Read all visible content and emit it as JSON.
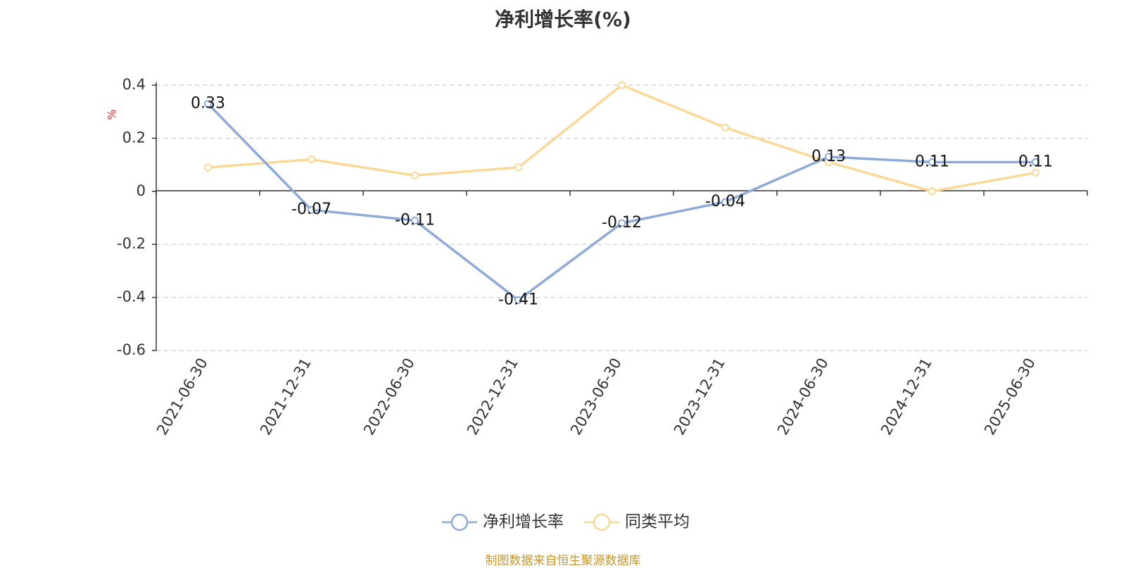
{
  "chart_data": {
    "type": "line",
    "title": "净利增长率(%)",
    "ylabel": "%",
    "categories": [
      "2021-06-30",
      "2021-12-31",
      "2022-06-30",
      "2022-12-31",
      "2023-06-30",
      "2023-12-31",
      "2024-06-30",
      "2024-12-31",
      "2025-06-30"
    ],
    "ylim": [
      -0.6,
      0.4
    ],
    "yticks": [
      0.4,
      0.2,
      0,
      -0.2,
      -0.4,
      -0.6
    ],
    "ytick_labels": [
      "0.4",
      "0.2",
      "0",
      "-0.2",
      "-0.4",
      "-0.6"
    ],
    "grid": true,
    "legend_position": "bottom-center",
    "series": [
      {
        "name": "净利增长率",
        "color": "#8eaad8",
        "values": [
          0.33,
          -0.07,
          -0.11,
          -0.41,
          -0.12,
          -0.04,
          0.13,
          0.11,
          0.11
        ],
        "labels": [
          "0.33",
          "-0.07",
          "-0.11",
          "-0.41",
          "-0.12",
          "-0.04",
          "0.13",
          "0.11",
          "0.11"
        ]
      },
      {
        "name": "同类平均",
        "color": "#fad996",
        "values": [
          0.09,
          0.12,
          0.06,
          0.09,
          0.4,
          0.24,
          0.11,
          0.0,
          0.07
        ]
      }
    ]
  },
  "footer": {
    "source": "制图数据来自恒生聚源数据库"
  },
  "colors": {
    "ylabel": "#e0201f",
    "footer": "#c8962a",
    "axis": "#333333",
    "grid": "#cccccc"
  }
}
